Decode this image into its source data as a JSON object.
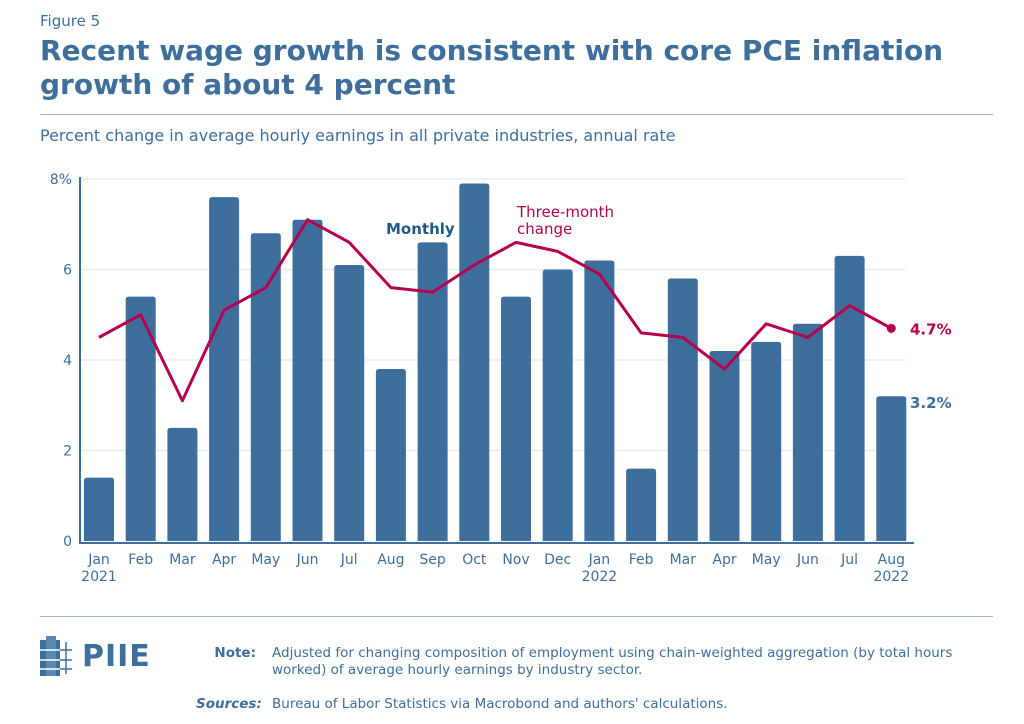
{
  "figure_label": "Figure 5",
  "title": "Recent wage growth is consistent with core PCE inflation growth of about 4 percent",
  "subtitle": "Percent change in average hourly earnings in all private industries, annual rate",
  "chart_data": {
    "type": "bar+line",
    "categories": [
      "Jan",
      "Feb",
      "Mar",
      "Apr",
      "May",
      "Jun",
      "Jul",
      "Aug",
      "Sep",
      "Oct",
      "Nov",
      "Dec",
      "Jan",
      "Feb",
      "Mar",
      "Apr",
      "May",
      "Jun",
      "Jul",
      "Aug"
    ],
    "year_labels": {
      "0": "2021",
      "12": "2022",
      "19": "2022"
    },
    "series": [
      {
        "name": "Monthly",
        "type": "bar",
        "color": "#3d6e9c",
        "values": [
          1.4,
          5.4,
          2.5,
          7.6,
          6.8,
          7.1,
          6.1,
          3.8,
          6.6,
          7.9,
          5.4,
          6.0,
          6.2,
          1.6,
          5.8,
          4.2,
          4.4,
          4.8,
          6.3,
          3.2
        ],
        "end_label": "3.2%"
      },
      {
        "name": "Three-month change",
        "type": "line",
        "color": "#b5004f",
        "values": [
          4.5,
          5.0,
          3.1,
          5.1,
          5.6,
          7.1,
          6.6,
          5.6,
          5.5,
          6.1,
          6.6,
          6.4,
          5.9,
          4.6,
          4.5,
          3.8,
          4.8,
          4.5,
          5.2,
          4.7
        ],
        "end_label": "4.7%"
      }
    ],
    "y_ticks": [
      "0",
      "2",
      "4",
      "6",
      "8%"
    ],
    "ylim": [
      0,
      8
    ],
    "grid": true
  },
  "logo": "PIIE",
  "note_label": "Note:",
  "note_text": "Adjusted for changing composition of employment using chain-weighted aggregation (by total hours worked) of average hourly earnings by industry sector.",
  "sources_label": "Sources:",
  "sources_text": "Bureau of Labor Statistics via Macrobond and authors' calculations."
}
